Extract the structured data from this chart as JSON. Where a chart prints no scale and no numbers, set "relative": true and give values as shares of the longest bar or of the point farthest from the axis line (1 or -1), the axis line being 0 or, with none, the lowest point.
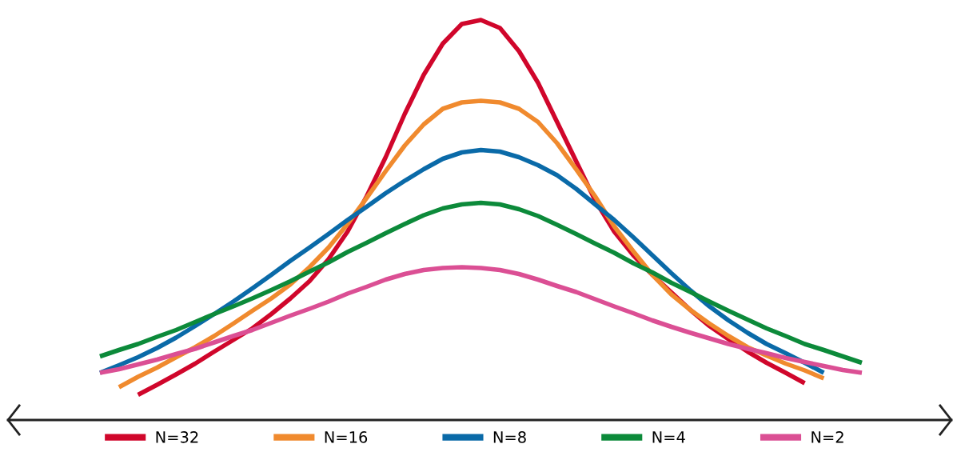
{
  "chart_data": {
    "type": "line",
    "relative": true,
    "legend": "bottom",
    "grid": false,
    "marker": "none",
    "line_style": "solid",
    "categories": [
      null,
      null,
      null,
      null,
      null,
      null,
      null,
      null,
      null,
      null,
      null,
      null,
      null,
      null,
      null,
      null,
      null,
      null,
      null,
      null,
      null,
      null,
      null,
      null,
      null,
      null,
      null,
      null,
      null,
      null,
      null,
      null,
      null,
      null,
      null,
      null,
      null,
      null,
      null,
      null,
      null
    ],
    "series": [
      {
        "name": "N=32",
        "color": "#d0062b",
        "values": [
          null,
          null,
          0.063,
          0.088,
          0.114,
          0.141,
          0.171,
          0.2,
          0.229,
          0.265,
          0.304,
          0.347,
          0.402,
          0.471,
          0.559,
          0.657,
          0.765,
          0.863,
          0.941,
          0.99,
          1,
          0.98,
          0.922,
          0.843,
          0.745,
          0.647,
          0.549,
          0.471,
          0.412,
          0.363,
          0.319,
          0.275,
          0.235,
          0.202,
          0.171,
          0.143,
          0.118,
          0.092,
          null,
          null,
          null
        ]
      },
      {
        "name": "N=16",
        "color": "#f08a2e",
        "values": [
          null,
          0.082,
          0.108,
          0.131,
          0.157,
          0.182,
          0.21,
          0.241,
          0.273,
          0.304,
          0.339,
          0.382,
          0.431,
          0.49,
          0.555,
          0.622,
          0.686,
          0.739,
          0.778,
          0.794,
          0.798,
          0.794,
          0.778,
          0.745,
          0.692,
          0.627,
          0.559,
          0.484,
          0.422,
          0.363,
          0.314,
          0.275,
          0.241,
          0.21,
          0.182,
          0.161,
          0.141,
          0.124,
          0.104,
          null,
          null
        ]
      },
      {
        "name": "N=8",
        "color": "#0a6aa8",
        "values": [
          0.118,
          0.137,
          0.157,
          0.18,
          0.206,
          0.235,
          0.265,
          0.296,
          0.329,
          0.363,
          0.398,
          0.431,
          0.465,
          0.5,
          0.533,
          0.567,
          0.598,
          0.627,
          0.653,
          0.669,
          0.675,
          0.671,
          0.657,
          0.637,
          0.612,
          0.578,
          0.539,
          0.5,
          0.457,
          0.412,
          0.367,
          0.324,
          0.284,
          0.249,
          0.218,
          0.19,
          0.167,
          0.143,
          0.118,
          null,
          null
        ]
      },
      {
        "name": "N=4",
        "color": "#0c8a3a",
        "values": [
          0.159,
          0.175,
          0.19,
          0.208,
          0.225,
          0.245,
          0.265,
          0.284,
          0.304,
          0.325,
          0.347,
          0.371,
          0.394,
          0.42,
          0.443,
          0.467,
          0.49,
          0.512,
          0.529,
          0.539,
          0.543,
          0.539,
          0.527,
          0.51,
          0.488,
          0.465,
          0.441,
          0.418,
          0.392,
          0.369,
          0.343,
          0.32,
          0.296,
          0.273,
          0.251,
          0.229,
          0.21,
          0.19,
          0.175,
          0.159,
          0.143
        ]
      },
      {
        "name": "N=2",
        "color": "#db4f94",
        "values": [
          0.118,
          0.127,
          0.139,
          0.151,
          0.165,
          0.178,
          0.194,
          0.21,
          0.225,
          0.243,
          0.261,
          0.278,
          0.296,
          0.316,
          0.333,
          0.351,
          0.365,
          0.375,
          0.38,
          0.382,
          0.38,
          0.375,
          0.365,
          0.351,
          0.335,
          0.32,
          0.302,
          0.284,
          0.267,
          0.249,
          0.233,
          0.218,
          0.204,
          0.19,
          0.178,
          0.167,
          0.155,
          0.145,
          0.135,
          0.125,
          0.118
        ]
      }
    ]
  }
}
